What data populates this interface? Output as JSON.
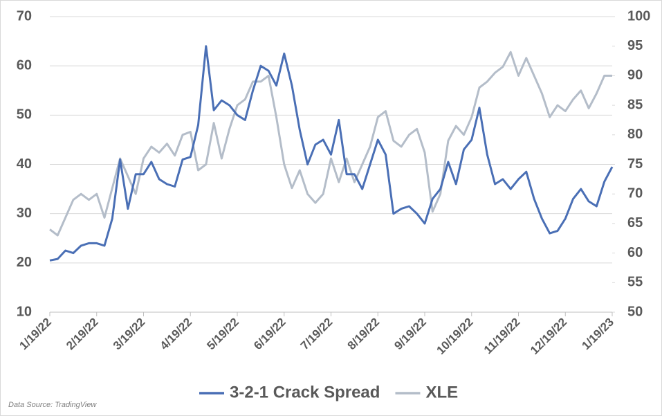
{
  "chart_data": {
    "type": "line",
    "categories": [
      "1/19/22",
      null,
      null,
      null,
      null,
      null,
      "2/19/22",
      null,
      null,
      null,
      null,
      null,
      "3/19/22",
      null,
      null,
      null,
      null,
      null,
      "4/19/22",
      null,
      null,
      null,
      null,
      null,
      "5/19/22",
      null,
      null,
      null,
      null,
      null,
      "6/19/22",
      null,
      null,
      null,
      null,
      null,
      "7/19/22",
      null,
      null,
      null,
      null,
      null,
      "8/19/22",
      null,
      null,
      null,
      null,
      null,
      "9/19/22",
      null,
      null,
      null,
      null,
      null,
      "10/19/22",
      null,
      null,
      null,
      null,
      null,
      "11/19/22",
      null,
      null,
      null,
      null,
      null,
      "12/19/22",
      null,
      null,
      null,
      null,
      null,
      "1/19/23"
    ],
    "series": [
      {
        "name": "3-2-1 Crack Spread",
        "color": "#4a6fb5",
        "axis": "y",
        "values": [
          20.5,
          20.8,
          22.5,
          22,
          23.5,
          24,
          24,
          23.5,
          29,
          41,
          31,
          38,
          38,
          40.5,
          37,
          36,
          35.5,
          41,
          41.5,
          48,
          64,
          51,
          53,
          52,
          50,
          49,
          55,
          60,
          59,
          56,
          62.5,
          56,
          47,
          40,
          44,
          45,
          42,
          49,
          38,
          38,
          35,
          40,
          45,
          42,
          30,
          31,
          31.5,
          30,
          28,
          33,
          35,
          40.5,
          36,
          43,
          45,
          51.5,
          42,
          36,
          37,
          35,
          37,
          38.5,
          33,
          29,
          26,
          26.5,
          29,
          33,
          35,
          32.5,
          31.5,
          36.5,
          39.5
        ]
      },
      {
        "name": "XLE",
        "color": "#b4bdc9",
        "axis": "y2",
        "values": [
          64,
          63,
          66,
          69,
          70,
          69,
          70,
          66,
          71,
          76,
          73,
          70,
          76,
          78,
          77,
          78.5,
          76.5,
          80,
          80.5,
          74,
          75,
          82,
          76,
          81,
          85,
          86,
          89,
          89,
          90,
          83,
          75,
          71,
          74,
          70,
          68.5,
          70,
          76,
          72,
          76,
          72,
          75,
          78,
          83,
          84,
          79,
          78,
          80,
          81,
          77,
          67,
          70,
          79,
          81.5,
          80,
          83,
          88,
          89,
          90.5,
          91.5,
          94,
          90,
          93,
          90,
          87,
          83,
          85,
          84,
          86,
          87.5,
          84.5,
          87,
          90,
          90
        ]
      }
    ],
    "ylim": [
      10,
      70
    ],
    "yticks": [
      10,
      20,
      30,
      40,
      50,
      60,
      70
    ],
    "y2lim": [
      50,
      100
    ],
    "y2ticks": [
      50,
      55,
      60,
      65,
      70,
      75,
      80,
      85,
      90,
      95,
      100
    ],
    "grid": true,
    "legend": "bottom",
    "note": "Data Source: TradingView"
  }
}
